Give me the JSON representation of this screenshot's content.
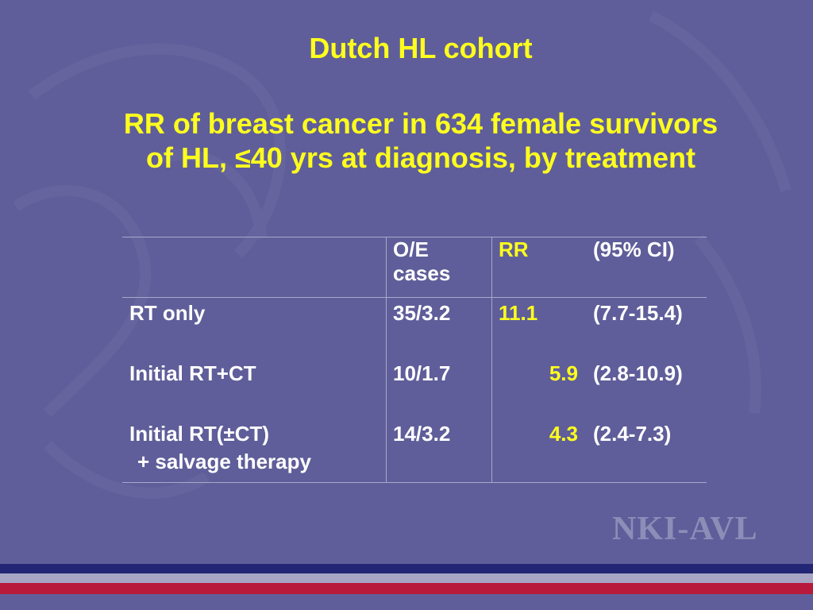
{
  "slide": {
    "title": "Dutch HL cohort",
    "subtitle_line1": "RR of breast cancer in 634 female survivors",
    "subtitle_line2": "of HL, ≤40 yrs at diagnosis, by treatment"
  },
  "table": {
    "headers": {
      "treatment": "",
      "oe": "O/E cases",
      "rr": "RR",
      "ci": "(95% CI)"
    },
    "rows": [
      {
        "treatment": "RT only",
        "treatment_line2": "",
        "oe": "35/3.2",
        "rr": "11.1",
        "ci": "(7.7-15.4)"
      },
      {
        "treatment": "Initial RT+CT",
        "treatment_line2": "",
        "oe": "10/1.7",
        "rr": "5.9",
        "ci": "(2.8-10.9)"
      },
      {
        "treatment": "Initial RT(±CT)",
        "treatment_line2": "+ salvage therapy",
        "oe": "14/3.2",
        "rr": "4.3",
        "ci": "(2.4-7.3)"
      }
    ]
  },
  "logo": {
    "text": "NKI-AVL"
  },
  "colors": {
    "background": "#5f5e9a",
    "accent_yellow": "#ffff1e",
    "stripe_navy": "#232675",
    "stripe_grey": "#a7a5c4",
    "stripe_red": "#b71a3b"
  }
}
